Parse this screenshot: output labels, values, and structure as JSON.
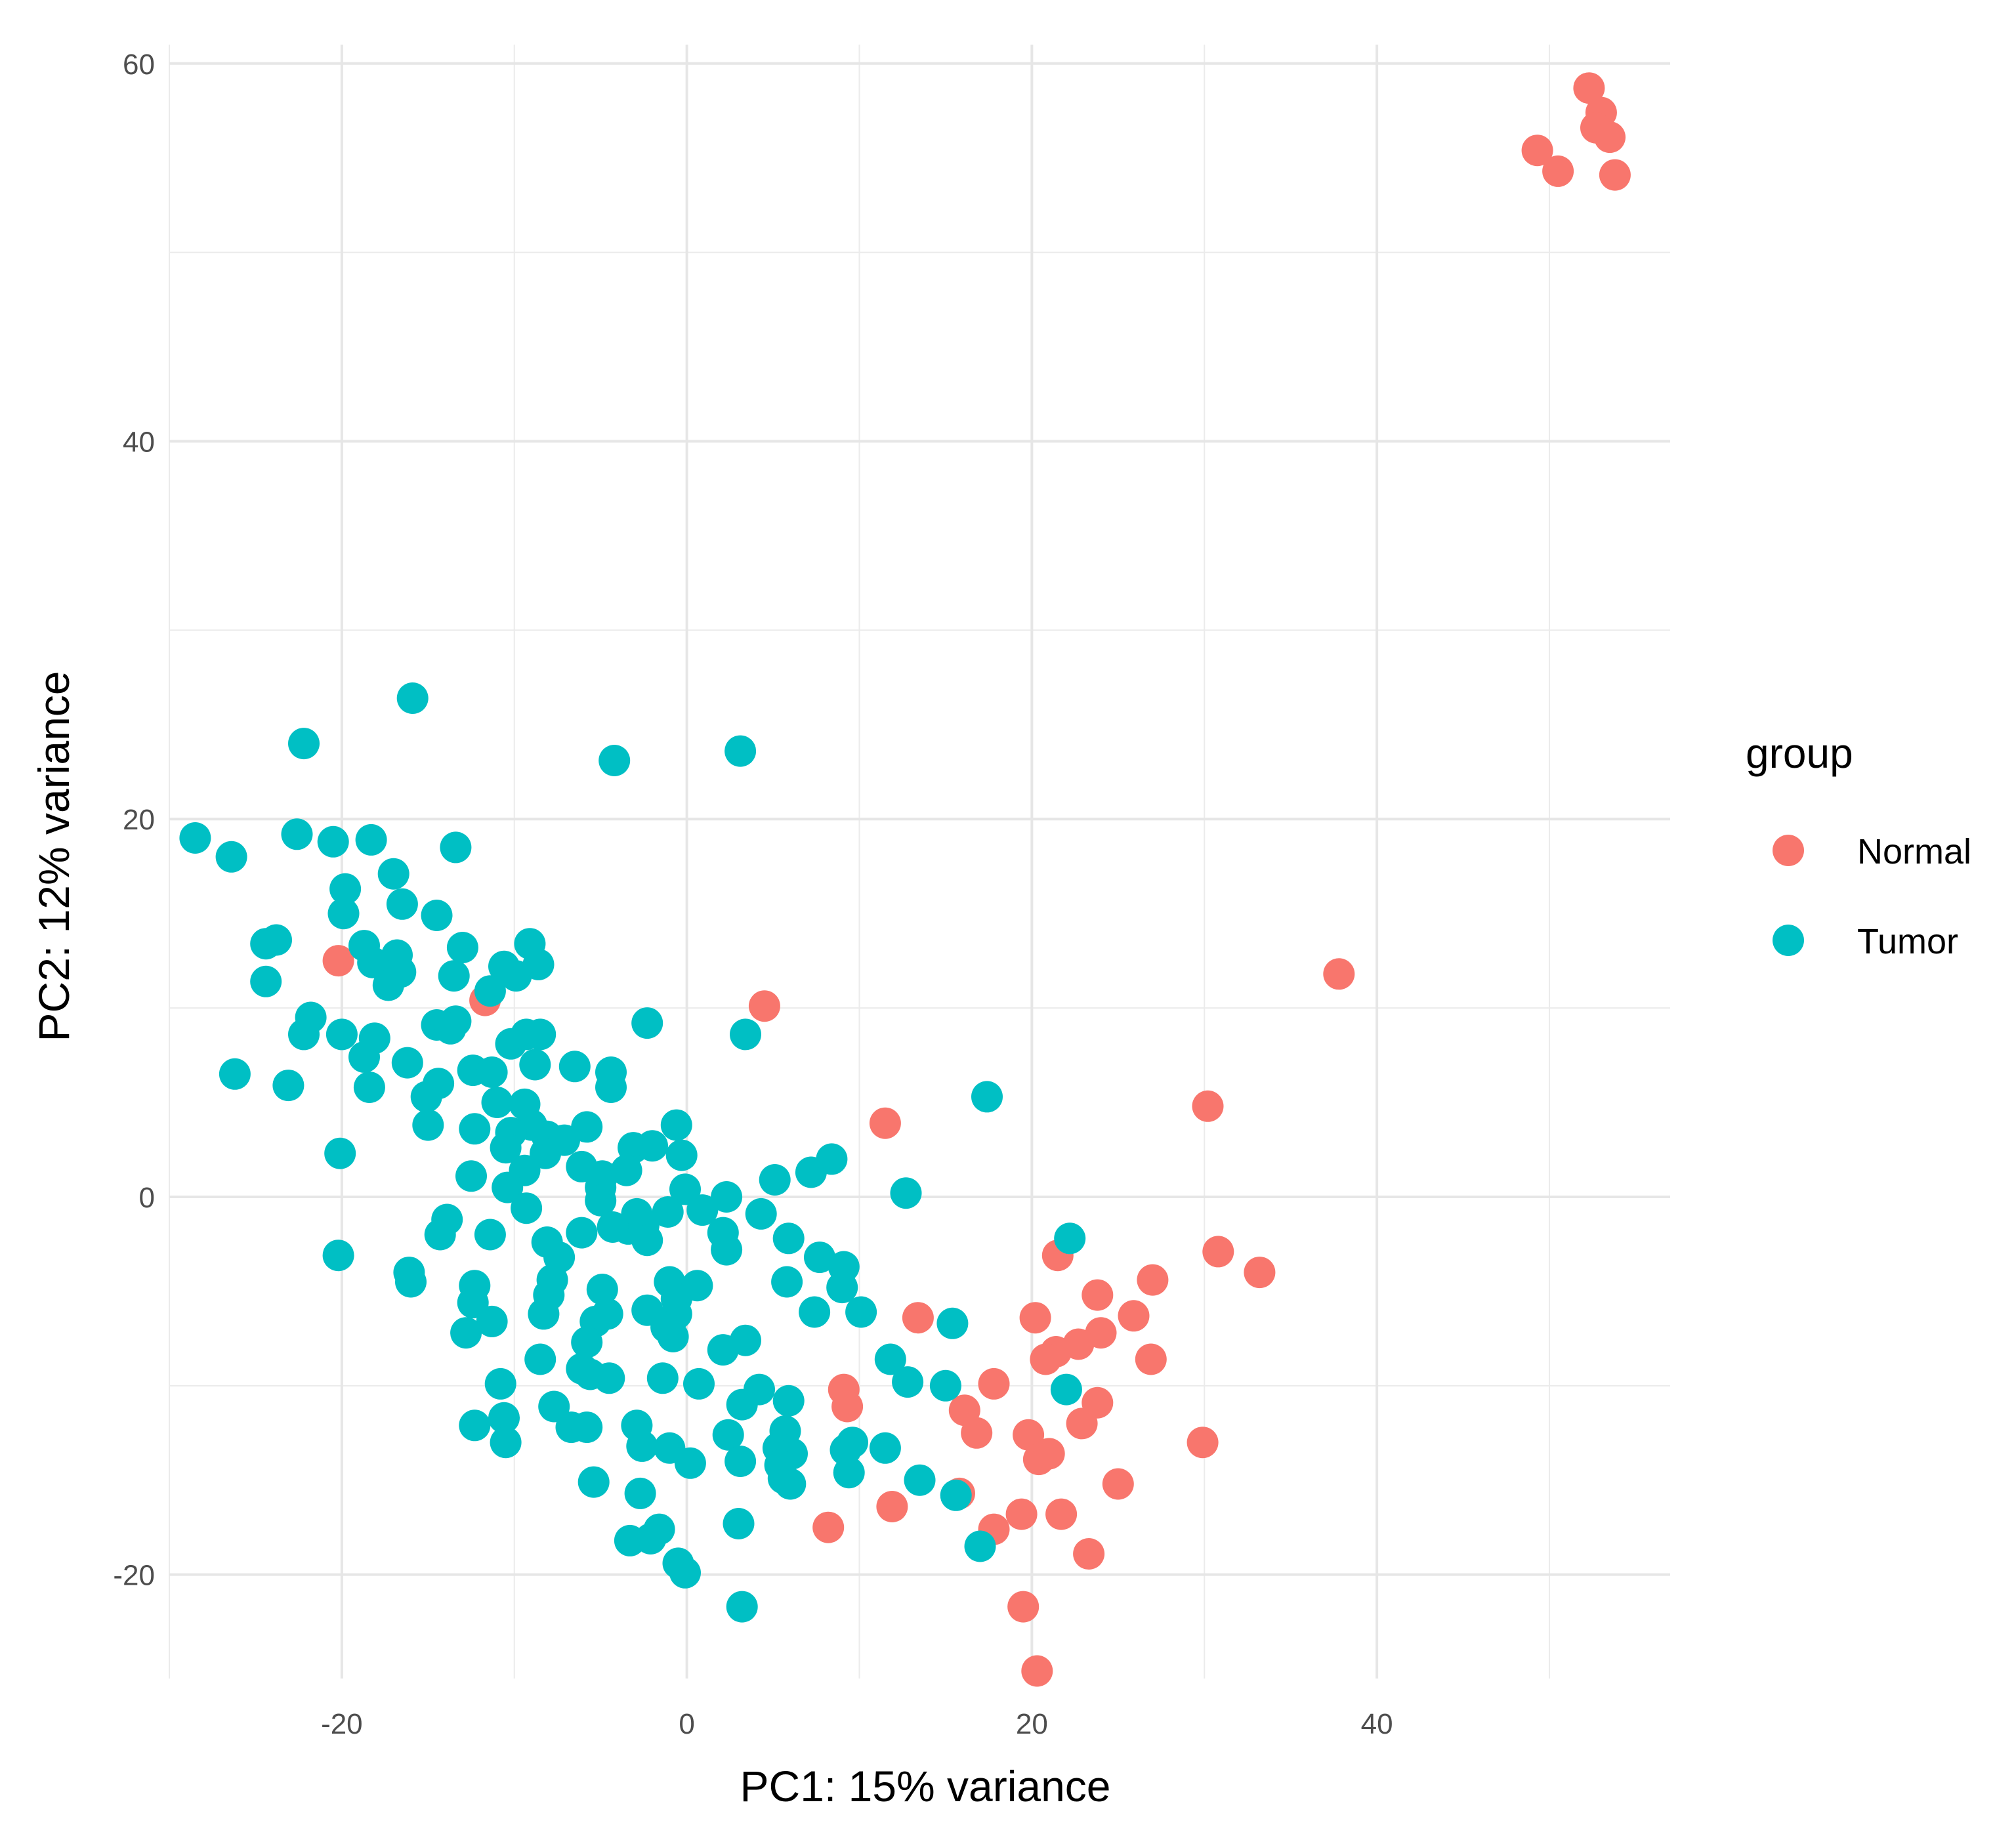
{
  "chart_data": {
    "type": "scatter",
    "xlabel": "PC1: 15% variance",
    "ylabel": "PC2: 12% variance",
    "xlim": [
      -30,
      57
    ],
    "ylim": [
      -25.5,
      61
    ],
    "x_ticks": [
      -20,
      0,
      20,
      40
    ],
    "y_ticks": [
      -20,
      0,
      20,
      40,
      60
    ],
    "grid": true,
    "legend": {
      "title": "group",
      "placement": "right"
    },
    "colors": {
      "Normal": "#F8766D",
      "Tumor": "#00BFC4"
    },
    "series": [
      {
        "name": "Normal",
        "points": [
          [
            52.3,
            58.7
          ],
          [
            53.0,
            57.4
          ],
          [
            52.7,
            56.6
          ],
          [
            53.5,
            56.1
          ],
          [
            49.3,
            55.4
          ],
          [
            50.5,
            54.3
          ],
          [
            53.8,
            54.1
          ],
          [
            -20.2,
            12.5
          ],
          [
            -11.7,
            10.4
          ],
          [
            4.5,
            10.1
          ],
          [
            37.8,
            11.8
          ],
          [
            11.5,
            3.9
          ],
          [
            30.2,
            4.8
          ],
          [
            21.5,
            -3.1
          ],
          [
            30.8,
            -2.9
          ],
          [
            33.2,
            -4.0
          ],
          [
            27.0,
            -4.4
          ],
          [
            23.8,
            -5.2
          ],
          [
            13.4,
            -6.4
          ],
          [
            20.2,
            -6.4
          ],
          [
            25.9,
            -6.3
          ],
          [
            24.0,
            -7.2
          ],
          [
            22.7,
            -7.8
          ],
          [
            21.4,
            -8.2
          ],
          [
            20.8,
            -8.6
          ],
          [
            26.9,
            -8.6
          ],
          [
            17.8,
            -9.9
          ],
          [
            9.1,
            -10.2
          ],
          [
            9.3,
            -11.1
          ],
          [
            23.8,
            -10.9
          ],
          [
            16.1,
            -11.3
          ],
          [
            22.9,
            -12.0
          ],
          [
            16.8,
            -12.5
          ],
          [
            19.8,
            -12.6
          ],
          [
            29.9,
            -13.0
          ],
          [
            20.4,
            -13.9
          ],
          [
            21.0,
            -13.6
          ],
          [
            25.0,
            -15.2
          ],
          [
            15.8,
            -15.7
          ],
          [
            11.9,
            -16.4
          ],
          [
            21.7,
            -16.8
          ],
          [
            19.4,
            -16.8
          ],
          [
            8.2,
            -17.5
          ],
          [
            17.8,
            -17.6
          ],
          [
            23.3,
            -18.9
          ],
          [
            19.5,
            -21.7
          ],
          [
            20.3,
            -25.1
          ]
        ]
      },
      {
        "name": "Tumor",
        "points": [
          [
            -15.9,
            26.4
          ],
          [
            -22.2,
            24.0
          ],
          [
            -4.2,
            23.1
          ],
          [
            3.1,
            23.6
          ],
          [
            -28.5,
            19.0
          ],
          [
            -26.4,
            18.0
          ],
          [
            -22.6,
            19.2
          ],
          [
            -20.5,
            18.8
          ],
          [
            -18.3,
            18.9
          ],
          [
            -13.4,
            18.5
          ],
          [
            -17.0,
            17.1
          ],
          [
            -19.8,
            16.3
          ],
          [
            -16.5,
            15.5
          ],
          [
            -19.9,
            15.0
          ],
          [
            -14.5,
            14.9
          ],
          [
            -24.4,
            13.4
          ],
          [
            -23.8,
            13.6
          ],
          [
            -18.7,
            13.3
          ],
          [
            -16.8,
            12.8
          ],
          [
            -13.0,
            13.2
          ],
          [
            -9.1,
            13.4
          ],
          [
            -18.2,
            12.4
          ],
          [
            -10.6,
            12.2
          ],
          [
            -8.6,
            12.3
          ],
          [
            -9.9,
            11.7
          ],
          [
            -13.5,
            11.7
          ],
          [
            -17.3,
            11.2
          ],
          [
            -24.4,
            11.4
          ],
          [
            -11.4,
            10.9
          ],
          [
            -16.6,
            11.9
          ],
          [
            -21.8,
            9.5
          ],
          [
            -13.4,
            9.3
          ],
          [
            -2.3,
            9.2
          ],
          [
            -22.2,
            8.6
          ],
          [
            -20.0,
            8.6
          ],
          [
            -18.1,
            8.4
          ],
          [
            -14.5,
            9.1
          ],
          [
            -13.7,
            8.9
          ],
          [
            -10.2,
            8.1
          ],
          [
            -9.3,
            8.6
          ],
          [
            -8.5,
            8.6
          ],
          [
            3.4,
            8.6
          ],
          [
            -18.7,
            7.4
          ],
          [
            -16.2,
            7.1
          ],
          [
            -8.8,
            7.0
          ],
          [
            -6.5,
            6.9
          ],
          [
            -4.4,
            6.6
          ],
          [
            -26.2,
            6.5
          ],
          [
            -12.4,
            6.7
          ],
          [
            -11.3,
            6.6
          ],
          [
            -14.4,
            6.0
          ],
          [
            -23.1,
            5.9
          ],
          [
            -18.4,
            5.8
          ],
          [
            -4.4,
            5.8
          ],
          [
            -15.1,
            5.3
          ],
          [
            -11.0,
            5.0
          ],
          [
            -9.4,
            4.9
          ],
          [
            -9.0,
            3.8
          ],
          [
            -5.8,
            3.7
          ],
          [
            -8.1,
            3.2
          ],
          [
            -15.0,
            3.8
          ],
          [
            -12.3,
            3.6
          ],
          [
            -10.2,
            3.4
          ],
          [
            -7.1,
            3.0
          ],
          [
            -0.6,
            3.8
          ],
          [
            17.4,
            5.3
          ],
          [
            -10.5,
            2.6
          ],
          [
            -8.2,
            2.3
          ],
          [
            -3.1,
            2.6
          ],
          [
            -0.3,
            2.2
          ],
          [
            -20.1,
            2.3
          ],
          [
            -6.1,
            1.6
          ],
          [
            -2.0,
            2.7
          ],
          [
            -4.9,
            1.1
          ],
          [
            -3.5,
            1.4
          ],
          [
            7.2,
            1.3
          ],
          [
            8.4,
            2.0
          ],
          [
            5.1,
            0.9
          ],
          [
            -12.5,
            1.1
          ],
          [
            -9.4,
            1.4
          ],
          [
            -10.4,
            0.5
          ],
          [
            -5.0,
            0.5
          ],
          [
            -0.1,
            0.4
          ],
          [
            12.7,
            0.2
          ],
          [
            -9.3,
            -0.6
          ],
          [
            -5.0,
            -0.2
          ],
          [
            2.3,
            0.0
          ],
          [
            4.3,
            -0.9
          ],
          [
            -13.9,
            -1.2
          ],
          [
            -2.9,
            -0.9
          ],
          [
            0.9,
            -0.7
          ],
          [
            -1.1,
            -0.8
          ],
          [
            -3.4,
            -1.7
          ],
          [
            -2.5,
            -1.5
          ],
          [
            -4.3,
            -1.6
          ],
          [
            2.1,
            -1.9
          ],
          [
            -14.3,
            -2.0
          ],
          [
            -11.4,
            -2.0
          ],
          [
            -6.1,
            -1.9
          ],
          [
            -8.1,
            -2.4
          ],
          [
            -2.3,
            -2.3
          ],
          [
            5.9,
            -2.2
          ],
          [
            22.2,
            -2.2
          ],
          [
            2.3,
            -2.8
          ],
          [
            7.7,
            -3.2
          ],
          [
            -20.2,
            -3.1
          ],
          [
            -7.4,
            -3.2
          ],
          [
            9.1,
            -3.7
          ],
          [
            -16.1,
            -4.0
          ],
          [
            -16.0,
            -4.5
          ],
          [
            -7.8,
            -4.4
          ],
          [
            -1.0,
            -4.5
          ],
          [
            0.6,
            -4.7
          ],
          [
            5.8,
            -4.5
          ],
          [
            9.0,
            -4.8
          ],
          [
            -12.3,
            -4.7
          ],
          [
            -8.0,
            -5.2
          ],
          [
            -4.9,
            -4.9
          ],
          [
            -0.6,
            -5.4
          ],
          [
            -12.4,
            -5.6
          ],
          [
            -4.6,
            -6.2
          ],
          [
            -2.3,
            -6.0
          ],
          [
            -0.6,
            -6.2
          ],
          [
            -8.3,
            -6.2
          ],
          [
            -11.3,
            -6.6
          ],
          [
            -5.3,
            -6.6
          ],
          [
            7.4,
            -6.1
          ],
          [
            10.1,
            -6.1
          ],
          [
            15.4,
            -6.7
          ],
          [
            -12.8,
            -7.2
          ],
          [
            -1.2,
            -6.9
          ],
          [
            -5.8,
            -7.7
          ],
          [
            -0.8,
            -7.4
          ],
          [
            2.1,
            -8.1
          ],
          [
            3.4,
            -7.6
          ],
          [
            -8.5,
            -8.6
          ],
          [
            -5.6,
            -9.4
          ],
          [
            -6.1,
            -9.1
          ],
          [
            11.8,
            -8.6
          ],
          [
            12.8,
            -9.8
          ],
          [
            -10.8,
            -9.9
          ],
          [
            -4.5,
            -9.6
          ],
          [
            -1.4,
            -9.6
          ],
          [
            0.7,
            -9.9
          ],
          [
            4.2,
            -10.2
          ],
          [
            15.0,
            -10.0
          ],
          [
            22.0,
            -10.2
          ],
          [
            -7.7,
            -11.1
          ],
          [
            3.2,
            -11.0
          ],
          [
            5.9,
            -10.8
          ],
          [
            -12.3,
            -12.1
          ],
          [
            -10.6,
            -11.7
          ],
          [
            -6.7,
            -12.2
          ],
          [
            -5.8,
            -12.2
          ],
          [
            -2.9,
            -12.1
          ],
          [
            2.4,
            -12.6
          ],
          [
            5.7,
            -12.4
          ],
          [
            -10.5,
            -13.0
          ],
          [
            -2.6,
            -13.2
          ],
          [
            -1.0,
            -13.3
          ],
          [
            5.3,
            -13.3
          ],
          [
            6.1,
            -13.6
          ],
          [
            9.6,
            -13.0
          ],
          [
            9.2,
            -13.4
          ],
          [
            11.5,
            -13.3
          ],
          [
            3.1,
            -14.0
          ],
          [
            5.4,
            -14.2
          ],
          [
            0.2,
            -14.1
          ],
          [
            9.4,
            -14.6
          ],
          [
            -5.4,
            -15.1
          ],
          [
            5.6,
            -14.9
          ],
          [
            6.0,
            -15.2
          ],
          [
            13.5,
            -15.0
          ],
          [
            -2.7,
            -15.7
          ],
          [
            15.6,
            -15.8
          ],
          [
            3.0,
            -17.3
          ],
          [
            -1.6,
            -17.6
          ],
          [
            -3.3,
            -18.2
          ],
          [
            -2.1,
            -18.1
          ],
          [
            17.0,
            -18.5
          ],
          [
            -0.5,
            -19.4
          ],
          [
            -0.1,
            -19.9
          ],
          [
            3.2,
            -21.7
          ]
        ]
      }
    ]
  }
}
